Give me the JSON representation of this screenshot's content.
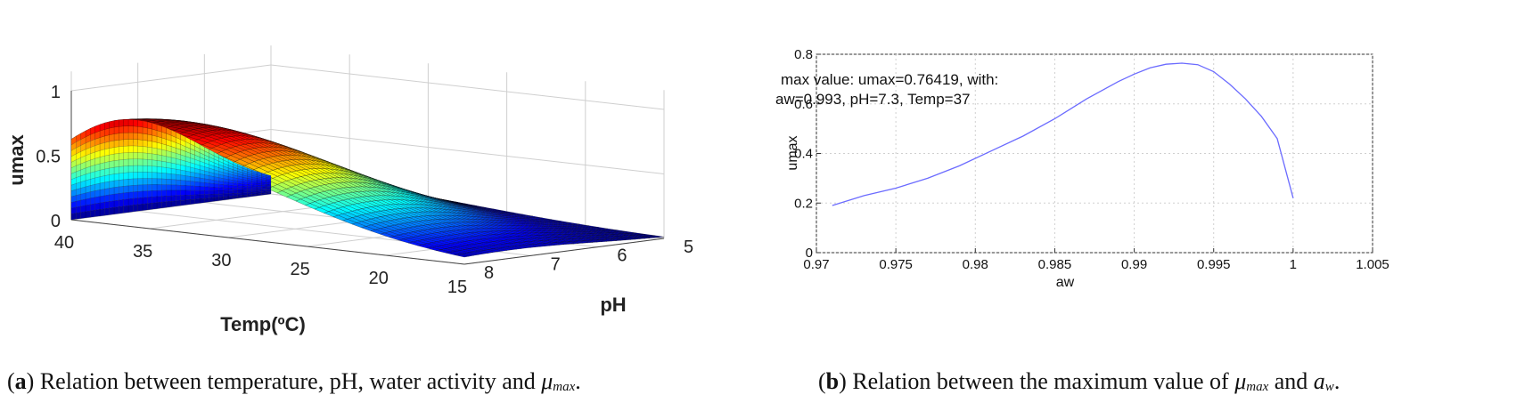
{
  "chart_data": [
    {
      "id": "a",
      "type": "surface3d",
      "zlabel": "umax",
      "xlabel": "Temp(ºC)",
      "ylabel": "pH",
      "temp_range": [
        15,
        40
      ],
      "ph_range": [
        5,
        8
      ],
      "z_range": [
        0,
        1
      ],
      "temp_ticks": [
        "40",
        "35",
        "30",
        "25",
        "20",
        "15"
      ],
      "temp_tick_values": [
        40,
        35,
        30,
        25,
        20,
        15
      ],
      "ph_ticks": [
        "5",
        "6",
        "7",
        "8"
      ],
      "ph_tick_values": [
        5,
        6,
        7,
        8
      ],
      "z_ticks": [
        "0",
        "0.5",
        "1"
      ],
      "z_tick_values": [
        0,
        0.5,
        1
      ],
      "peak": {
        "temp": 37,
        "ph": 7.3,
        "umax": 0.76
      },
      "colormap": "jet"
    },
    {
      "id": "b",
      "type": "line",
      "xlabel": "aw",
      "ylabel": "umax",
      "xlim": [
        0.97,
        1.005
      ],
      "ylim": [
        0,
        0.8
      ],
      "x_ticks": [
        "0.97",
        "0.975",
        "0.98",
        "0.985",
        "0.99",
        "0.995",
        "1",
        "1.005"
      ],
      "x_tick_values": [
        0.97,
        0.975,
        0.98,
        0.985,
        0.99,
        0.995,
        1.0,
        1.005
      ],
      "y_ticks": [
        "0",
        "0.2",
        "0.4",
        "0.6",
        "0.8"
      ],
      "y_tick_values": [
        0,
        0.2,
        0.4,
        0.6,
        0.8
      ],
      "annotation": [
        "max value: umax=0.76419, with:",
        "aw=0.993, pH=7.3, Temp=37"
      ],
      "line_color": "#6b6bff",
      "series": [
        {
          "name": "umax",
          "x": [
            0.971,
            0.973,
            0.975,
            0.977,
            0.979,
            0.981,
            0.983,
            0.985,
            0.987,
            0.989,
            0.99,
            0.991,
            0.992,
            0.993,
            0.994,
            0.995,
            0.996,
            0.997,
            0.998,
            0.999,
            1.0
          ],
          "y": [
            0.19,
            0.23,
            0.26,
            0.3,
            0.35,
            0.41,
            0.47,
            0.54,
            0.62,
            0.69,
            0.72,
            0.745,
            0.76,
            0.764,
            0.758,
            0.73,
            0.68,
            0.62,
            0.55,
            0.46,
            0.22
          ]
        }
      ]
    }
  ],
  "captions": {
    "a_label": "a",
    "a_text": "Relation between temperature, pH, water activity and",
    "a_symbol": "μ",
    "a_sub": "max",
    "b_label": "b",
    "b_text": "Relation between the maximum value of",
    "b_symbol": "μ",
    "b_sub": "max",
    "b_and": "and",
    "b_symbol2": "a",
    "b_sub2": "w"
  }
}
